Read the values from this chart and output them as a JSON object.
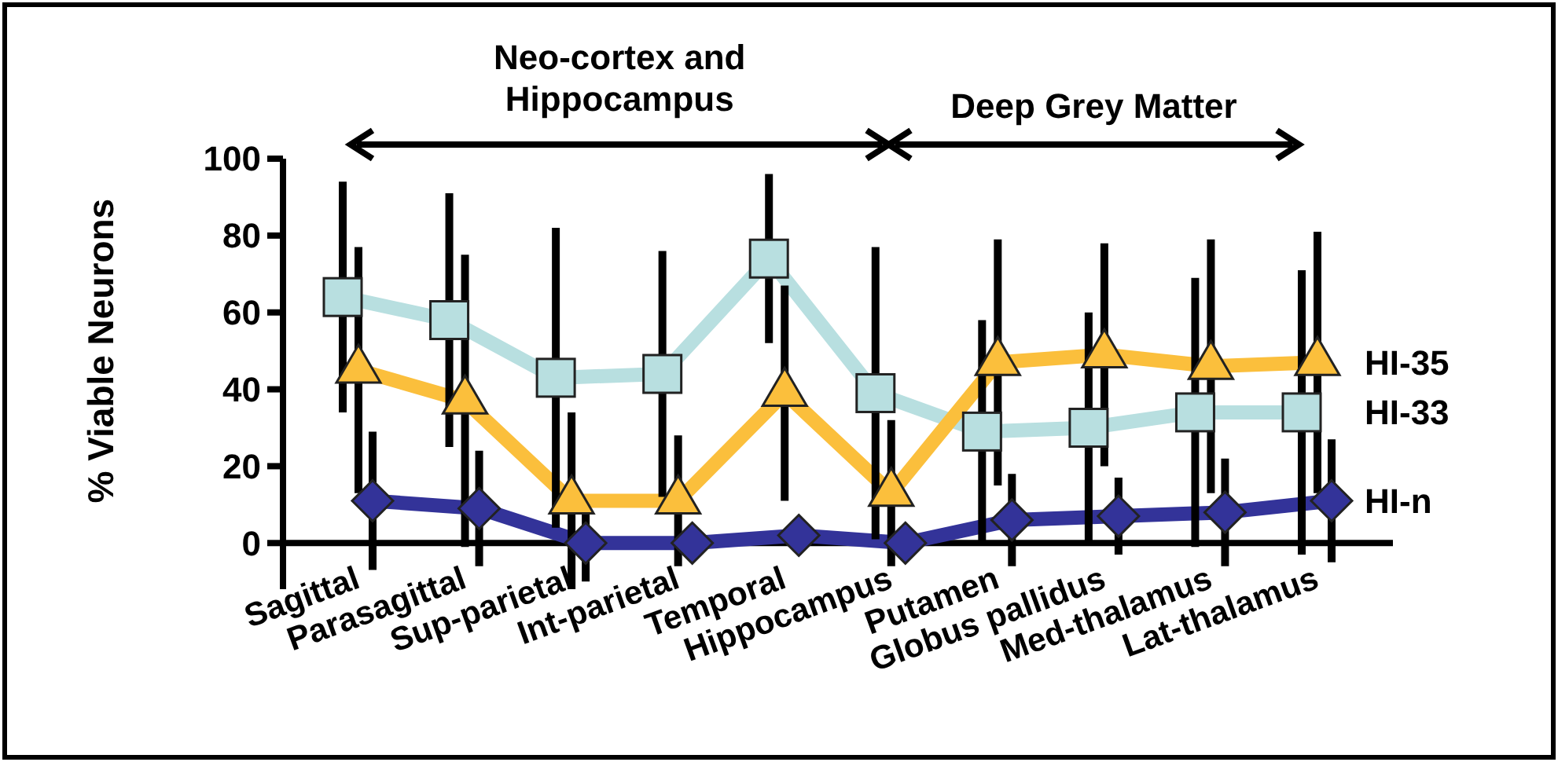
{
  "chart_data": {
    "type": "line",
    "ylabel": "% Viable Neurons",
    "categories": [
      "Sagittal",
      "Parasagittal",
      "Sup-parietal",
      "Int-parietal",
      "Temporal",
      "Hippocampus",
      "Putamen",
      "Globus pallidus",
      "Med-thalamus",
      "Lat-thalamus"
    ],
    "series": [
      {
        "name": "HI-33",
        "color": "#b8dfe0",
        "marker": "square",
        "values": [
          64,
          58,
          43,
          44,
          74,
          39,
          29,
          30,
          34,
          34
        ],
        "errors": [
          30,
          33,
          39,
          32,
          22,
          38,
          29,
          30,
          35,
          37
        ]
      },
      {
        "name": "HI-35",
        "color": "#fbbf3c",
        "marker": "triangle",
        "values": [
          45,
          37,
          11,
          11,
          39,
          13,
          47,
          49,
          46,
          47
        ],
        "errors": [
          32,
          38,
          23,
          17,
          28,
          19,
          32,
          29,
          33,
          34
        ]
      },
      {
        "name": "HI-n",
        "color": "#333399",
        "marker": "diamond",
        "values": [
          11,
          9,
          0,
          0,
          2,
          0,
          6,
          7,
          8,
          11
        ],
        "errors": [
          18,
          15,
          10,
          null,
          null,
          null,
          12,
          10,
          14,
          16
        ]
      }
    ],
    "ylim": [
      -12,
      100
    ],
    "yticks": [
      0,
      20,
      40,
      60,
      80,
      100
    ],
    "grid": false,
    "annotations": [
      "Neo-cortex and Hippocampus",
      "Deep Grey Matter"
    ]
  }
}
